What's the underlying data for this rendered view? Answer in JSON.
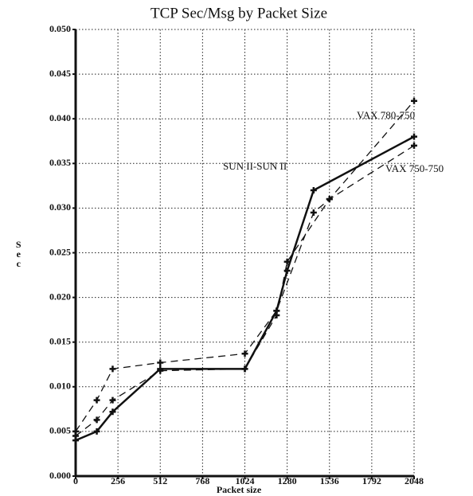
{
  "chart_data": {
    "type": "line",
    "title": "TCP Sec/Msg by Packet Size",
    "x_label": "Packet size",
    "y_label": "Sec",
    "xlim": [
      0,
      2048
    ],
    "xticks": [
      0,
      256,
      512,
      768,
      1024,
      1280,
      1536,
      1792,
      2048
    ],
    "ylim": [
      0,
      0.05
    ],
    "yticks": [
      {
        "value": 0,
        "label": "0.000"
      },
      {
        "value": 0.005,
        "label": "0.005"
      },
      {
        "value": 0.01,
        "label": "0.010"
      },
      {
        "value": 0.015,
        "label": "0.015"
      },
      {
        "value": 0.02,
        "label": "0.020"
      },
      {
        "value": 0.025,
        "label": "0.025"
      },
      {
        "value": 0.03,
        "label": "0.030"
      },
      {
        "value": 0.035,
        "label": "0.035"
      },
      {
        "value": 0.04,
        "label": "0.040"
      },
      {
        "value": 0.045,
        "label": "0.045"
      },
      {
        "value": 0.05,
        "label": "0.050"
      }
    ],
    "grid": true,
    "series": [
      {
        "name": "SUN II-SUN II",
        "color": "#111111",
        "style": "solid",
        "x": [
          0,
          128,
          224,
          512,
          1024,
          1216,
          1280,
          1440,
          2048
        ],
        "values": [
          0.004,
          0.005,
          0.0072,
          0.012,
          0.012,
          0.0185,
          0.023,
          0.032,
          0.038
        ]
      },
      {
        "name": "VAX 780-750",
        "color": "#111111",
        "style": "dashed",
        "x": [
          0,
          128,
          224,
          512,
          1024,
          1216,
          1440,
          1536,
          2048
        ],
        "values": [
          0.005,
          0.0085,
          0.012,
          0.0127,
          0.0137,
          0.0185,
          0.0295,
          0.031,
          0.042
        ]
      },
      {
        "name": "VAX 750-750",
        "color": "#111111",
        "style": "dashed",
        "x": [
          0,
          128,
          224,
          512,
          1024,
          1216,
          1280,
          1536,
          2048
        ],
        "values": [
          0.0045,
          0.0063,
          0.0085,
          0.0118,
          0.012,
          0.018,
          0.024,
          0.031,
          0.037
        ]
      }
    ]
  }
}
